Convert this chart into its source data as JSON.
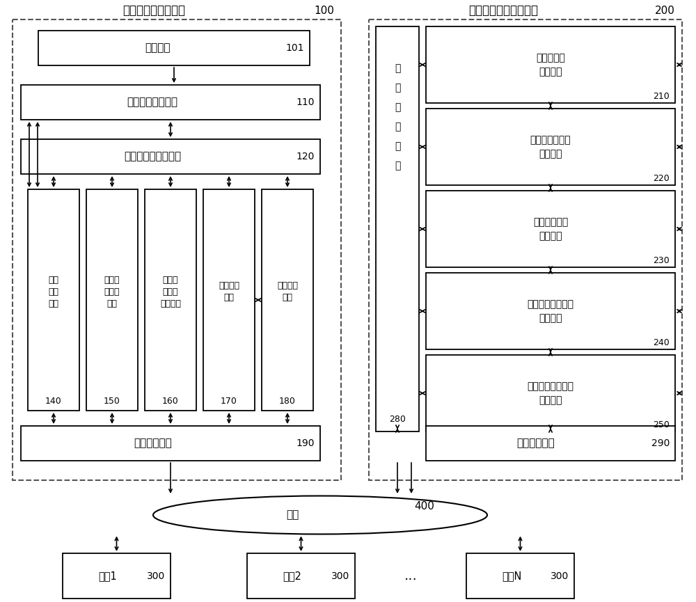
{
  "left_box_title": "文件系统客户端装置",
  "left_box_num": "100",
  "right_box_title": "文件系统元服务器装置",
  "right_box_num": "200",
  "app_label": "应用程序",
  "app_num": "101",
  "file_access_label": "文件访问接口模块",
  "file_access_num": "110",
  "file_block_label": "文件块信息管理模块",
  "file_block_num": "120",
  "sub_labels": [
    [
      "系统管理模块",
      "140"
    ],
    [
      "纠删码编\n解码模块",
      "150"
    ],
    [
      "文件块分\n解与合成\n模块",
      "160"
    ],
    [
      "网盘访问\n模块",
      "170"
    ],
    [
      "网络传输\n模块",
      "180"
    ]
  ],
  "local_storage_left": "本地存储介质",
  "local_storage_left_num": "190",
  "local_storage_right": "本地存储介质",
  "local_storage_right_num": "290",
  "network_transfer_lines": [
    "网",
    "络",
    "传",
    "输",
    "模",
    "块"
  ],
  "network_transfer_num": "280",
  "right_modules": [
    {
      "line1": "用户元信息",
      "line2": "管理模块",
      "num": "210"
    },
    {
      "line1": "文件基本元信息",
      "line2": "管理模块",
      "num": "220"
    },
    {
      "line1": "文件块元信息",
      "line2": "管理模块",
      "num": "230"
    },
    {
      "line1": "文件块纠删元信息",
      "line2": "管理模块",
      "num": "240"
    },
    {
      "line1": "纠删数据块元信息",
      "line2": "管理模块",
      "num": "250"
    }
  ],
  "network_label": "网络",
  "network_num": "400",
  "netdisk_labels": [
    "网盘1",
    "网盘2",
    "网盘N"
  ],
  "netdisk_num": "300",
  "dots": "...",
  "bg_color": "#ffffff"
}
